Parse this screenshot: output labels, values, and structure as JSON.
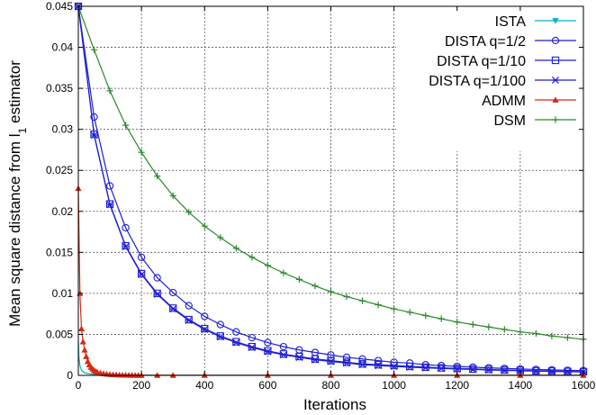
{
  "chart_data": {
    "type": "line",
    "xlabel": "Iterations",
    "ylabel_main": "Mean square distance from l",
    "ylabel_sub": "1",
    "ylabel_tail": " estimator",
    "xlim": [
      0,
      1600
    ],
    "ylim": [
      0,
      0.045
    ],
    "xticks": [
      0,
      200,
      400,
      600,
      800,
      1000,
      1200,
      1400,
      1600
    ],
    "xtick_labels": [
      "0",
      "200",
      "400",
      "600",
      "800",
      "1000",
      "1200",
      "1400",
      "1600"
    ],
    "yticks": [
      0,
      0.005,
      0.01,
      0.015,
      0.02,
      0.025,
      0.03,
      0.035,
      0.04,
      0.045
    ],
    "ytick_labels": [
      "0",
      "0.005",
      "0.01",
      "0.015",
      "0.02",
      "0.025",
      "0.03",
      "0.035",
      "0.04",
      "0.045"
    ],
    "grid": true,
    "legend_position": "top-right",
    "series": [
      {
        "name": "ISTA",
        "color": "#00b3c6",
        "marker": "triangle-down",
        "marker_every": 0,
        "points": [
          [
            0,
            0.0042
          ],
          [
            2,
            0.0022
          ],
          [
            5,
            0.0012
          ],
          [
            10,
            0.0006
          ],
          [
            20,
            0.0003
          ],
          [
            50,
            0.0001
          ],
          [
            100,
            5e-05
          ],
          [
            200,
            3e-05
          ],
          [
            400,
            2e-05
          ],
          [
            800,
            2e-05
          ],
          [
            1600,
            2e-05
          ]
        ]
      },
      {
        "name": "DISTA q=1/2",
        "color": "#1f1fd6",
        "marker": "circle",
        "marker_every": 50,
        "points": [
          [
            0,
            0.045
          ],
          [
            50,
            0.0315
          ],
          [
            100,
            0.0231
          ],
          [
            150,
            0.018
          ],
          [
            200,
            0.0144
          ],
          [
            250,
            0.0119
          ],
          [
            300,
            0.0101
          ],
          [
            350,
            0.0085
          ],
          [
            400,
            0.0072
          ],
          [
            450,
            0.0062
          ],
          [
            500,
            0.0053
          ],
          [
            550,
            0.0046
          ],
          [
            600,
            0.004
          ],
          [
            650,
            0.0035
          ],
          [
            700,
            0.0031
          ],
          [
            750,
            0.0028
          ],
          [
            800,
            0.0025
          ],
          [
            850,
            0.0022
          ],
          [
            900,
            0.002
          ],
          [
            950,
            0.0018
          ],
          [
            1000,
            0.0016
          ],
          [
            1050,
            0.0015
          ],
          [
            1100,
            0.0013
          ],
          [
            1150,
            0.0012
          ],
          [
            1200,
            0.0011
          ],
          [
            1250,
            0.001
          ],
          [
            1300,
            0.00092
          ],
          [
            1350,
            0.00085
          ],
          [
            1400,
            0.00078
          ],
          [
            1450,
            0.00072
          ],
          [
            1500,
            0.00067
          ],
          [
            1550,
            0.00062
          ],
          [
            1600,
            0.00058
          ]
        ]
      },
      {
        "name": "DISTA q=1/10",
        "color": "#1f1fd6",
        "marker": "square",
        "marker_every": 50,
        "points": [
          [
            0,
            0.045
          ],
          [
            50,
            0.0294
          ],
          [
            100,
            0.0209
          ],
          [
            150,
            0.0158
          ],
          [
            200,
            0.0124
          ],
          [
            250,
            0.01
          ],
          [
            300,
            0.0082
          ],
          [
            350,
            0.0068
          ],
          [
            400,
            0.0057
          ],
          [
            450,
            0.0048
          ],
          [
            500,
            0.0041
          ],
          [
            550,
            0.0035
          ],
          [
            600,
            0.003
          ],
          [
            650,
            0.0026
          ],
          [
            700,
            0.0023
          ],
          [
            750,
            0.002
          ],
          [
            800,
            0.0018
          ],
          [
            850,
            0.0016
          ],
          [
            900,
            0.0014
          ],
          [
            950,
            0.0013
          ],
          [
            1000,
            0.0012
          ],
          [
            1050,
            0.0011
          ],
          [
            1100,
            0.001
          ],
          [
            1150,
            0.00092
          ],
          [
            1200,
            0.00085
          ],
          [
            1250,
            0.00078
          ],
          [
            1300,
            0.00072
          ],
          [
            1350,
            0.00066
          ],
          [
            1400,
            0.00061
          ],
          [
            1450,
            0.00056
          ],
          [
            1500,
            0.00052
          ],
          [
            1550,
            0.00048
          ],
          [
            1600,
            0.00045
          ]
        ]
      },
      {
        "name": "DISTA q=1/100",
        "color": "#1f1fd6",
        "marker": "star",
        "marker_every": 50,
        "points": [
          [
            0,
            0.045
          ],
          [
            50,
            0.0293
          ],
          [
            100,
            0.0208
          ],
          [
            150,
            0.0157
          ],
          [
            200,
            0.0123
          ],
          [
            250,
            0.0099
          ],
          [
            300,
            0.0081
          ],
          [
            350,
            0.0067
          ],
          [
            400,
            0.0056
          ],
          [
            450,
            0.0047
          ],
          [
            500,
            0.004
          ],
          [
            550,
            0.0034
          ],
          [
            600,
            0.0029
          ],
          [
            650,
            0.0025
          ],
          [
            700,
            0.0022
          ],
          [
            750,
            0.0019
          ],
          [
            800,
            0.0017
          ],
          [
            850,
            0.0015
          ],
          [
            900,
            0.0013
          ],
          [
            950,
            0.0012
          ],
          [
            1000,
            0.0011
          ],
          [
            1050,
            0.001
          ],
          [
            1100,
            0.00092
          ],
          [
            1150,
            0.00085
          ],
          [
            1200,
            0.00078
          ],
          [
            1250,
            0.00072
          ],
          [
            1300,
            0.00066
          ],
          [
            1350,
            0.00061
          ],
          [
            1400,
            0.00056
          ],
          [
            1450,
            0.00052
          ],
          [
            1500,
            0.00048
          ],
          [
            1550,
            0.00045
          ],
          [
            1600,
            0.00042
          ]
        ]
      },
      {
        "name": "ADMM",
        "color": "#d62a12",
        "marker": "triangle-up",
        "marker_every": 5,
        "points": [
          [
            0,
            0.0228
          ],
          [
            5,
            0.01
          ],
          [
            10,
            0.0057
          ],
          [
            15,
            0.0041
          ],
          [
            20,
            0.0031
          ],
          [
            25,
            0.0023
          ],
          [
            30,
            0.0017
          ],
          [
            35,
            0.0013
          ],
          [
            40,
            0.001
          ],
          [
            45,
            0.0008
          ],
          [
            50,
            0.0006
          ],
          [
            55,
            0.0005
          ],
          [
            60,
            0.0004
          ],
          [
            70,
            0.0003
          ],
          [
            80,
            0.00022
          ],
          [
            90,
            0.00017
          ],
          [
            100,
            0.00012
          ],
          [
            110,
            0.0001
          ],
          [
            120,
            8e-05
          ],
          [
            130,
            6e-05
          ],
          [
            140,
            5e-05
          ],
          [
            150,
            4e-05
          ],
          [
            160,
            3e-05
          ],
          [
            170,
            3e-05
          ],
          [
            180,
            2e-05
          ],
          [
            190,
            2e-05
          ],
          [
            200,
            2e-05
          ],
          [
            250,
            1e-05
          ],
          [
            300,
            1e-05
          ],
          [
            400,
            1e-05
          ],
          [
            600,
            1e-05
          ],
          [
            800,
            1e-05
          ],
          [
            1000,
            1e-05
          ],
          [
            1200,
            1e-05
          ],
          [
            1400,
            1e-05
          ],
          [
            1600,
            1e-05
          ]
        ]
      },
      {
        "name": "DSM",
        "color": "#2a8a2a",
        "marker": "plus",
        "marker_every": 50,
        "points": [
          [
            0,
            0.045
          ],
          [
            50,
            0.0397
          ],
          [
            100,
            0.0347
          ],
          [
            150,
            0.0305
          ],
          [
            200,
            0.0272
          ],
          [
            250,
            0.0243
          ],
          [
            300,
            0.0219
          ],
          [
            350,
            0.0199
          ],
          [
            400,
            0.0182
          ],
          [
            450,
            0.0168
          ],
          [
            500,
            0.0155
          ],
          [
            550,
            0.0144
          ],
          [
            600,
            0.0134
          ],
          [
            650,
            0.0125
          ],
          [
            700,
            0.0117
          ],
          [
            750,
            0.0109
          ],
          [
            800,
            0.0102
          ],
          [
            850,
            0.0096
          ],
          [
            900,
            0.0091
          ],
          [
            950,
            0.0086
          ],
          [
            1000,
            0.0081
          ],
          [
            1050,
            0.0077
          ],
          [
            1100,
            0.0073
          ],
          [
            1150,
            0.0069
          ],
          [
            1200,
            0.0065
          ],
          [
            1250,
            0.0062
          ],
          [
            1300,
            0.0059
          ],
          [
            1350,
            0.0056
          ],
          [
            1400,
            0.0053
          ],
          [
            1450,
            0.0051
          ],
          [
            1500,
            0.0048
          ],
          [
            1550,
            0.0046
          ],
          [
            1600,
            0.0044
          ]
        ]
      }
    ]
  }
}
